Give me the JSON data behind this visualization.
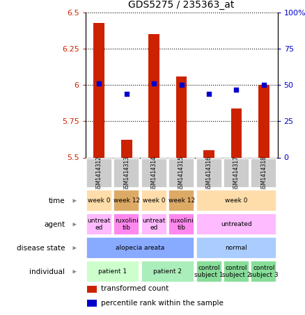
{
  "title": "GDS5275 / 235363_at",
  "samples": [
    "GSM1414312",
    "GSM1414313",
    "GSM1414314",
    "GSM1414315",
    "GSM1414316",
    "GSM1414317",
    "GSM1414318"
  ],
  "transformed_count": [
    6.43,
    5.62,
    6.35,
    6.06,
    5.55,
    5.84,
    6.0
  ],
  "percentile_rank": [
    51,
    44,
    51,
    50,
    44,
    47,
    50
  ],
  "ylim_left": [
    5.5,
    6.5
  ],
  "ylim_right": [
    0,
    100
  ],
  "yticks_left": [
    5.5,
    5.75,
    6.0,
    6.25,
    6.5
  ],
  "yticks_right": [
    0,
    25,
    50,
    75,
    100
  ],
  "ytick_labels_left": [
    "5.5",
    "5.75",
    "6",
    "6.25",
    "6.5"
  ],
  "ytick_labels_right": [
    "0",
    "25",
    "50",
    "75",
    "100%"
  ],
  "bar_color": "#cc2200",
  "dot_color": "#0000cc",
  "bar_bottom": 5.5,
  "annotation_rows": [
    {
      "label": "individual",
      "cells": [
        {
          "text": "patient 1",
          "span": 2,
          "color": "#ccffcc"
        },
        {
          "text": "patient 2",
          "span": 2,
          "color": "#aaeebb"
        },
        {
          "text": "control\nsubject 1",
          "span": 1,
          "color": "#88dd99"
        },
        {
          "text": "control\nsubject 2",
          "span": 1,
          "color": "#88dd99"
        },
        {
          "text": "control\nsubject 3",
          "span": 1,
          "color": "#88dd99"
        }
      ]
    },
    {
      "label": "disease state",
      "cells": [
        {
          "text": "alopecia areata",
          "span": 4,
          "color": "#88aaff"
        },
        {
          "text": "normal",
          "span": 3,
          "color": "#aaccff"
        }
      ]
    },
    {
      "label": "agent",
      "cells": [
        {
          "text": "untreat\ned",
          "span": 1,
          "color": "#ffbbff"
        },
        {
          "text": "ruxolini\ntib",
          "span": 1,
          "color": "#ff88ee"
        },
        {
          "text": "untreat\ned",
          "span": 1,
          "color": "#ffbbff"
        },
        {
          "text": "ruxolini\ntib",
          "span": 1,
          "color": "#ff88ee"
        },
        {
          "text": "untreated",
          "span": 3,
          "color": "#ffbbff"
        }
      ]
    },
    {
      "label": "time",
      "cells": [
        {
          "text": "week 0",
          "span": 1,
          "color": "#ffddaa"
        },
        {
          "text": "week 12",
          "span": 1,
          "color": "#ddaa66"
        },
        {
          "text": "week 0",
          "span": 1,
          "color": "#ffddaa"
        },
        {
          "text": "week 12",
          "span": 1,
          "color": "#ddaa66"
        },
        {
          "text": "week 0",
          "span": 3,
          "color": "#ffddaa"
        }
      ]
    }
  ],
  "legend_items": [
    {
      "color": "#cc2200",
      "label": "transformed count"
    },
    {
      "color": "#0000cc",
      "label": "percentile rank within the sample"
    }
  ],
  "grid_color": "black",
  "bg_color": "white",
  "axis_color_left": "#cc2200",
  "axis_color_right": "#0000cc",
  "sample_bg": "#cccccc",
  "fig_width": 4.38,
  "fig_height": 4.53,
  "dpi": 100
}
